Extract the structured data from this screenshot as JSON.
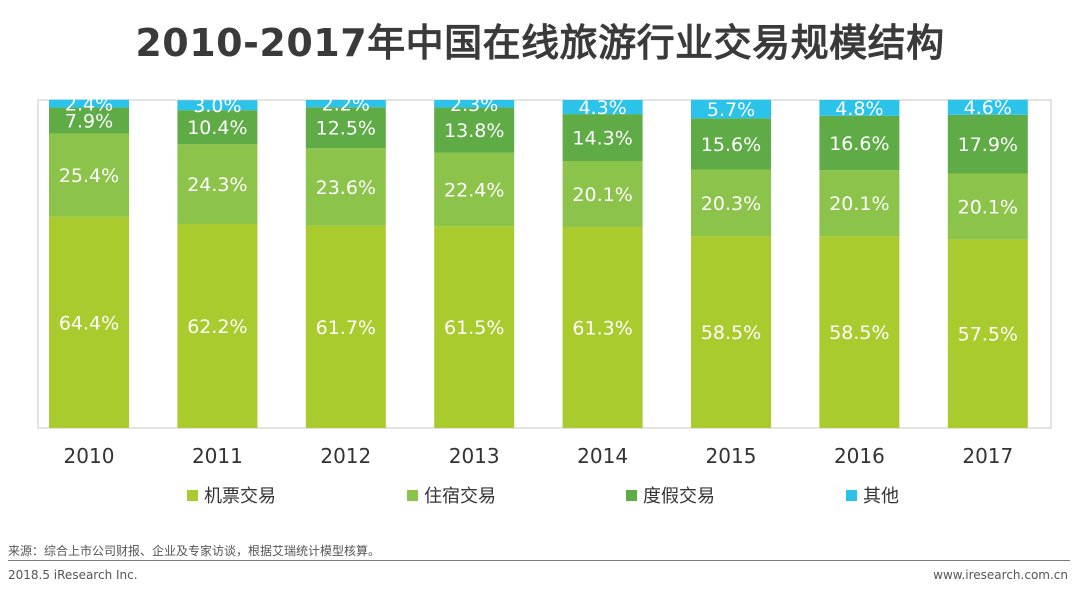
{
  "title": "2010-2017年中国在线旅游行业交易规模结构",
  "chart_data": {
    "type": "bar",
    "stacked": true,
    "categories": [
      "2010",
      "2011",
      "2012",
      "2013",
      "2014",
      "2015",
      "2016",
      "2017"
    ],
    "series": [
      {
        "name": "机票交易",
        "color": "#aacb2e",
        "values": [
          64.4,
          62.2,
          61.7,
          61.5,
          61.3,
          58.5,
          58.5,
          57.5
        ]
      },
      {
        "name": "住宿交易",
        "color": "#8cc34a",
        "values": [
          25.4,
          24.3,
          23.6,
          22.4,
          20.1,
          20.3,
          20.1,
          20.1
        ]
      },
      {
        "name": "度假交易",
        "color": "#5fab46",
        "values": [
          7.9,
          10.4,
          12.5,
          13.8,
          14.3,
          15.6,
          16.6,
          17.9
        ]
      },
      {
        "name": "其他",
        "color": "#2cc3ea",
        "values": [
          2.4,
          3.0,
          2.2,
          2.3,
          4.3,
          5.7,
          4.8,
          4.6
        ]
      }
    ],
    "value_labels": {
      "机票交易": [
        "64.4%",
        "62.2%",
        "61.7%",
        "61.5%",
        "61.3%",
        "58.5%",
        "58.5%",
        "57.5%"
      ],
      "住宿交易": [
        "25.4%",
        "24.3%",
        "23.6%",
        "22.4%",
        "20.1%",
        "20.3%",
        "20.1%",
        "20.1%"
      ],
      "度假交易": [
        "7.9%",
        "10.4%",
        "12.5%",
        "13.8%",
        "14.3%",
        "15.6%",
        "16.6%",
        "17.9%"
      ],
      "其他": [
        "2.4%",
        "3.0%",
        "2.2%",
        "2.3%",
        "4.3%",
        "5.7%",
        "4.8%",
        "4.6%"
      ]
    },
    "ylim": [
      0,
      100
    ],
    "legend_position": "bottom"
  },
  "source": "来源：综合上市公司财报、企业及专家访谈，根据艾瑞统计模型核算。",
  "footer": {
    "left": "2018.5 iResearch Inc.",
    "right": "www.iresearch.com.cn"
  }
}
